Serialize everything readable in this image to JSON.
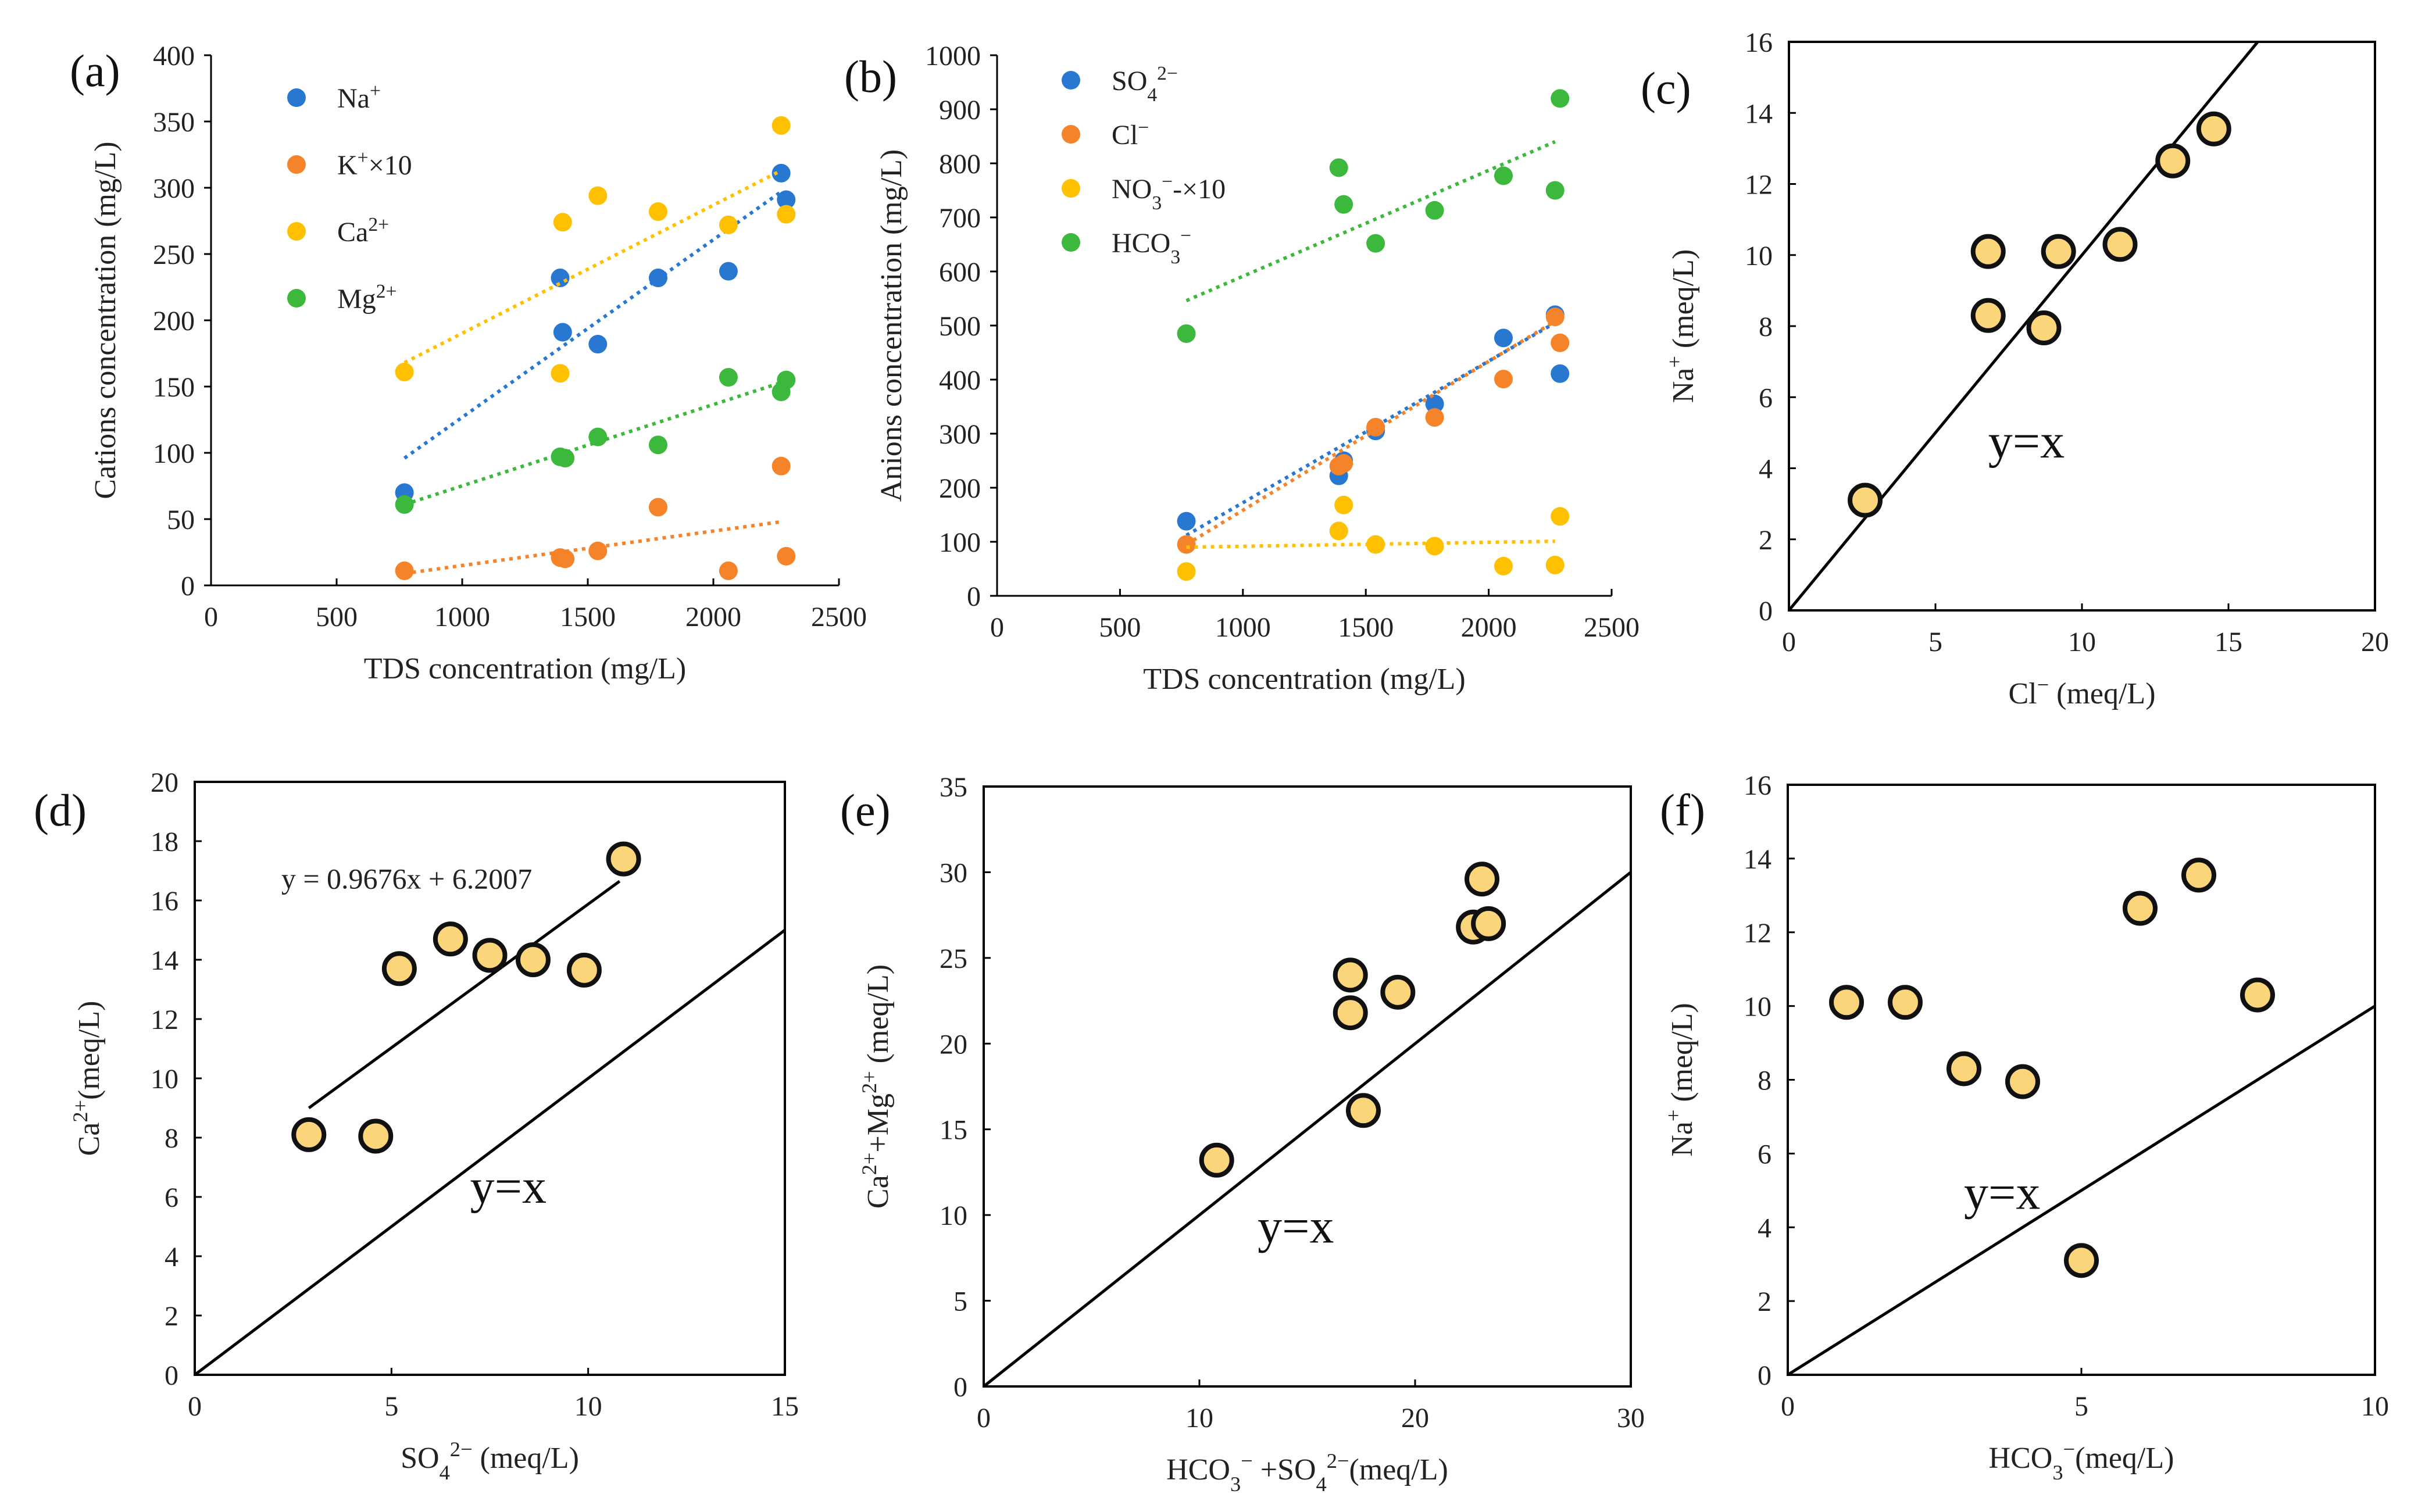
{
  "colors": {
    "blue": "#2878d2",
    "orange": "#f5832a",
    "yellow": "#ffc000",
    "green": "#3cb83c",
    "marker_fill": "#fad57a",
    "marker_edge": "#111111",
    "axis": "#000000"
  },
  "chart_data": [
    {
      "id": "a",
      "type": "scatter",
      "panel_label": "(a)",
      "xlabel": "TDS concentration (mg/L)",
      "ylabel": "Cations concentration (mg/L)",
      "xlim": [
        0,
        2500
      ],
      "ylim": [
        0,
        400
      ],
      "xticks": [
        0,
        500,
        1000,
        1500,
        2000,
        2500
      ],
      "yticks": [
        0,
        50,
        100,
        150,
        200,
        250,
        300,
        350,
        400
      ],
      "frame": "open",
      "legend": "top-left",
      "series": [
        {
          "name": "Na",
          "sup": "+",
          "suffix": "",
          "color": "blue",
          "x": [
            770,
            1390,
            1400,
            1540,
            1780,
            2060,
            2270,
            2290
          ],
          "y": [
            70,
            232,
            191,
            182,
            232,
            237,
            311,
            291
          ],
          "trend": [
            [
              770,
              96
            ],
            [
              2270,
              297
            ]
          ]
        },
        {
          "name": "K",
          "sup": "+",
          "suffix": "×10",
          "color": "orange",
          "x": [
            770,
            1390,
            1410,
            1540,
            1780,
            2060,
            2270,
            2290
          ],
          "y": [
            11,
            21,
            20,
            26,
            59,
            11,
            90,
            22
          ],
          "trend": [
            [
              770,
              9
            ],
            [
              2270,
              48
            ]
          ]
        },
        {
          "name": "Ca",
          "sup": "2+",
          "suffix": "",
          "color": "yellow",
          "x": [
            770,
            1390,
            1400,
            1540,
            1780,
            2060,
            2270,
            2290
          ],
          "y": [
            161,
            160,
            274,
            294,
            282,
            272,
            347,
            280
          ],
          "trend": [
            [
              770,
              168
            ],
            [
              2270,
              313
            ]
          ]
        },
        {
          "name": "Mg",
          "sup": "2+",
          "suffix": "",
          "color": "green",
          "x": [
            770,
            1390,
            1410,
            1540,
            1780,
            2060,
            2270,
            2290
          ],
          "y": [
            61,
            97,
            96,
            112,
            106,
            157,
            146,
            155
          ],
          "trend": [
            [
              770,
              61
            ],
            [
              2270,
              153
            ]
          ]
        }
      ]
    },
    {
      "id": "b",
      "type": "scatter",
      "panel_label": "(b)",
      "xlabel": "TDS concentration (mg/L)",
      "ylabel": "Anions concentration (mg/L)",
      "xlim": [
        0,
        2500
      ],
      "ylim": [
        0,
        1000
      ],
      "xticks": [
        0,
        500,
        1000,
        1500,
        2000,
        2500
      ],
      "yticks": [
        0,
        100,
        200,
        300,
        400,
        500,
        600,
        700,
        800,
        900,
        1000
      ],
      "frame": "open",
      "legend": "top-left",
      "series": [
        {
          "name": "SO",
          "sub": "4",
          "sup": "2−",
          "suffix": "",
          "color": "blue",
          "x": [
            770,
            1390,
            1410,
            1540,
            1780,
            2060,
            2270,
            2290
          ],
          "y": [
            138,
            222,
            250,
            305,
            355,
            477,
            520,
            411
          ],
          "trend": [
            [
              770,
              112
            ],
            [
              2270,
              505
            ]
          ]
        },
        {
          "name": "Cl",
          "sup": "−",
          "suffix": "",
          "color": "orange",
          "x": [
            770,
            1390,
            1410,
            1540,
            1780,
            2060,
            2270,
            2290
          ],
          "y": [
            95,
            240,
            245,
            312,
            330,
            401,
            516,
            468
          ],
          "trend": [
            [
              770,
              95
            ],
            [
              2270,
              508
            ]
          ]
        },
        {
          "name": "NO",
          "sub": "3",
          "sup": "−",
          "suffix": "-×10",
          "color": "yellow",
          "x": [
            770,
            1390,
            1410,
            1540,
            1780,
            2060,
            2270,
            2290
          ],
          "y": [
            45,
            120,
            168,
            95,
            92,
            55,
            57,
            147
          ],
          "trend": [
            [
              770,
              90
            ],
            [
              2270,
              101
            ]
          ]
        },
        {
          "name": "HCO",
          "sub": "3",
          "sup": "−",
          "suffix": "",
          "color": "green",
          "x": [
            770,
            1390,
            1410,
            1540,
            1780,
            2060,
            2270,
            2290
          ],
          "y": [
            485,
            792,
            724,
            652,
            713,
            777,
            750,
            920
          ],
          "trend": [
            [
              770,
              546
            ],
            [
              2270,
              840
            ]
          ]
        }
      ]
    },
    {
      "id": "c",
      "type": "scatter",
      "panel_label": "(c)",
      "xlabel": {
        "main": "Cl",
        "sup": "−",
        "unit": " (meq/L)"
      },
      "ylabel": {
        "main": "Na",
        "sup": "+",
        "unit": " (meq/L)"
      },
      "xlim": [
        0,
        20
      ],
      "ylim": [
        0,
        16
      ],
      "xticks": [
        0,
        5,
        10,
        15,
        20
      ],
      "yticks": [
        0,
        2,
        4,
        6,
        8,
        10,
        12,
        14,
        16
      ],
      "frame": "box",
      "points": {
        "x": [
          2.6,
          6.8,
          6.8,
          8.7,
          9.2,
          11.3,
          13.1,
          14.5
        ],
        "y": [
          3.1,
          10.1,
          8.3,
          7.95,
          10.1,
          10.3,
          12.65,
          13.55
        ]
      },
      "lines": [
        [
          [
            0,
            0
          ],
          [
            16,
            16
          ]
        ]
      ],
      "annotation": {
        "text": "y=x",
        "x": 6.8,
        "y": 4.3
      }
    },
    {
      "id": "d",
      "type": "scatter",
      "panel_label": "(d)",
      "xlabel": {
        "main": "SO",
        "sub": "4",
        "sup": "2−",
        "unit": " (meq/L)"
      },
      "ylabel": {
        "main": "Ca",
        "sup": "2+",
        "unit": "(meq/L)"
      },
      "xlim": [
        0,
        15
      ],
      "ylim": [
        0,
        20
      ],
      "xticks": [
        0,
        5,
        10,
        15
      ],
      "yticks": [
        0,
        2,
        4,
        6,
        8,
        10,
        12,
        14,
        16,
        18,
        20
      ],
      "frame": "box",
      "points": {
        "x": [
          2.9,
          4.6,
          5.2,
          6.5,
          7.5,
          8.6,
          9.9,
          10.9
        ],
        "y": [
          8.1,
          8.05,
          13.7,
          14.7,
          14.15,
          14.0,
          13.65,
          17.4
        ]
      },
      "lines": [
        [
          [
            0,
            0
          ],
          [
            15,
            15
          ]
        ],
        [
          [
            2.9,
            9.0
          ],
          [
            10.8,
            16.65
          ]
        ]
      ],
      "annotation": {
        "text": "y=x",
        "x": 7.0,
        "y": 5.8
      },
      "equation": {
        "text": "y = 0.9676x + 6.2007",
        "x": 2.2,
        "y": 16.4
      }
    },
    {
      "id": "e",
      "type": "scatter",
      "panel_label": "(e)",
      "xlabel": {
        "parts": [
          [
            "HCO",
            "",
            ""
          ],
          [
            "",
            "3",
            "−"
          ],
          [
            " +SO",
            "",
            ""
          ],
          [
            "",
            "4",
            "2−"
          ],
          [
            "(meq/L)",
            "",
            ""
          ]
        ]
      },
      "ylabel": {
        "parts": [
          [
            "Ca",
            "",
            ""
          ],
          [
            "",
            "",
            "2+"
          ],
          [
            "+Mg",
            "",
            ""
          ],
          [
            "",
            "",
            "2+"
          ],
          [
            " (meq/L)",
            "",
            ""
          ]
        ]
      },
      "xlim": [
        0,
        30
      ],
      "ylim": [
        0,
        35
      ],
      "xticks": [
        0,
        10,
        20,
        30
      ],
      "yticks": [
        0,
        5,
        10,
        15,
        20,
        25,
        30,
        35
      ],
      "frame": "box",
      "points": {
        "x": [
          10.8,
          17.0,
          17.0,
          17.6,
          19.2,
          22.7,
          23.1,
          23.4
        ],
        "y": [
          13.2,
          24.0,
          21.8,
          16.1,
          23.0,
          26.8,
          29.6,
          27.0
        ]
      },
      "lines": [
        [
          [
            0,
            0
          ],
          [
            30,
            30
          ]
        ]
      ],
      "annotation": {
        "text": "y=x",
        "x": 12.7,
        "y": 8.4
      }
    },
    {
      "id": "f",
      "type": "scatter",
      "panel_label": "(f)",
      "xlabel": {
        "main": "HCO",
        "sub": "3",
        "sup": "−",
        "unit": "(meq/L)"
      },
      "ylabel": {
        "main": "Na",
        "sup": "+",
        "unit": " (meq/L)"
      },
      "xlim": [
        0,
        10
      ],
      "ylim": [
        0,
        16
      ],
      "xticks": [
        0,
        5,
        10
      ],
      "yticks": [
        0,
        2,
        4,
        6,
        8,
        10,
        12,
        14,
        16
      ],
      "frame": "box",
      "points": {
        "x": [
          1.0,
          2.0,
          3.0,
          4.0,
          5.0,
          6.0,
          7.0,
          8.0
        ],
        "y": [
          10.1,
          10.1,
          8.3,
          7.95,
          3.1,
          12.65,
          13.55,
          10.3
        ]
      },
      "lines": [
        [
          [
            0,
            0
          ],
          [
            10,
            10
          ]
        ]
      ],
      "annotation": {
        "text": "y=x",
        "x": 3.0,
        "y": 4.5
      }
    }
  ]
}
